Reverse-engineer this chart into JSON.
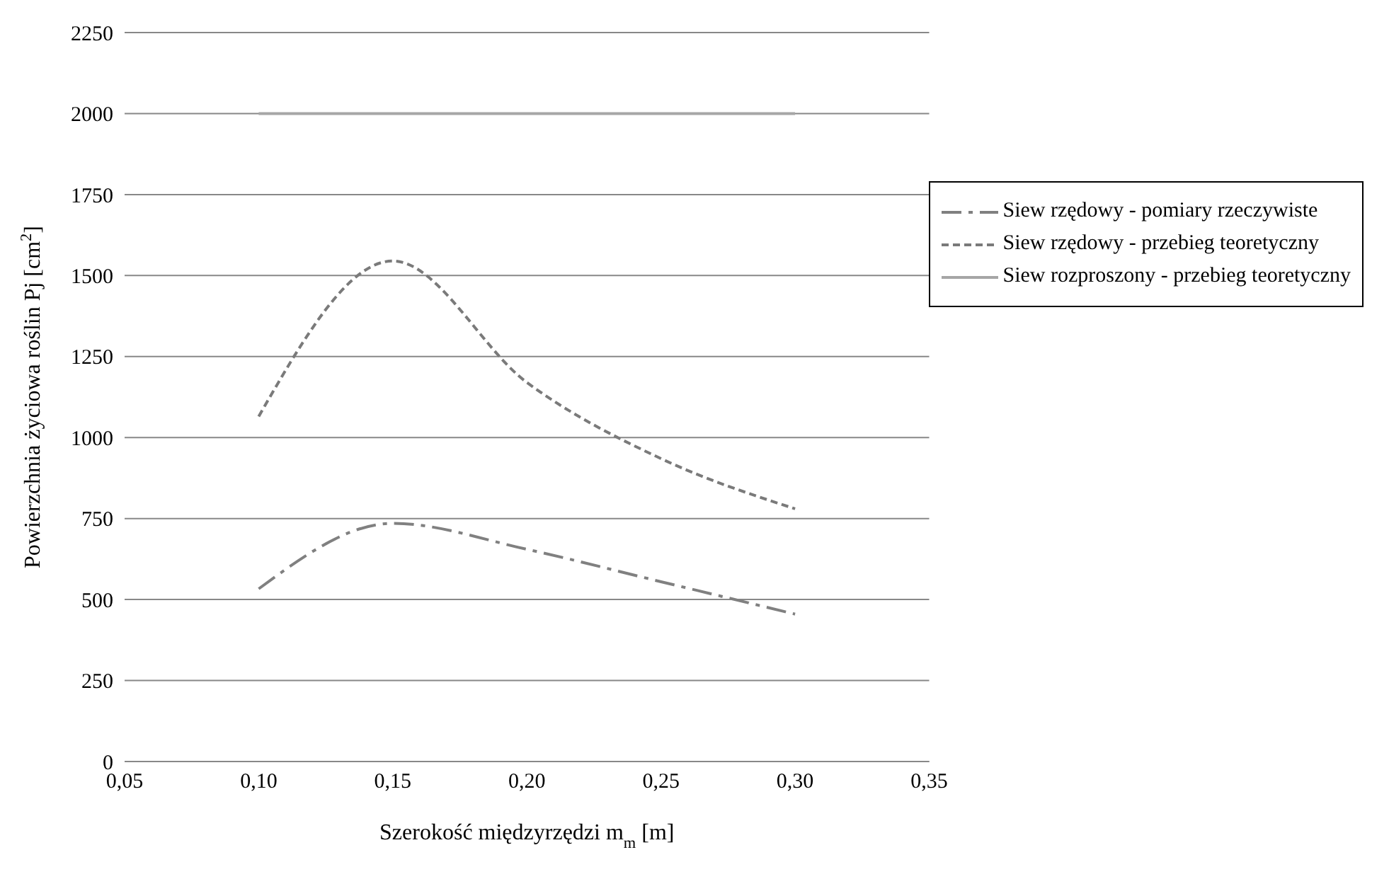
{
  "chart_data": {
    "type": "line",
    "xlabel": "Szerokość międzyrzędzi m$_{m}$ [m]",
    "ylabel": "Powierzchnia życiowa roślin Pj [cm$^{2}$]",
    "x": [
      0.1,
      0.15,
      0.2,
      0.25,
      0.3
    ],
    "series": [
      {
        "name": "Siew rzędowy - pomiary rzeczywiste",
        "color": "#808080",
        "line_style": "dashdot",
        "values": [
          533,
          735,
          655,
          555,
          455
        ]
      },
      {
        "name": "Siew rzędowy - przebieg teoretyczny",
        "color": "#7a7a7a",
        "line_style": "dashed",
        "values": [
          1065,
          1545,
          1170,
          935,
          780
        ]
      },
      {
        "name": "Siew rozproszony - przebieg teoretyczny",
        "color": "#a6a6a6",
        "line_style": "solid",
        "values": [
          2000,
          2000,
          2000,
          2000,
          2000
        ]
      }
    ],
    "xlim": [
      0.05,
      0.35
    ],
    "xticks": [
      {
        "value": 0.05,
        "label": "0,05"
      },
      {
        "value": 0.1,
        "label": "0,10"
      },
      {
        "value": 0.15,
        "label": "0,15"
      },
      {
        "value": 0.2,
        "label": "0,20"
      },
      {
        "value": 0.25,
        "label": "0,25"
      },
      {
        "value": 0.3,
        "label": "0,30"
      },
      {
        "value": 0.35,
        "label": "0,35"
      }
    ],
    "ylim": [
      0,
      2250
    ],
    "yticks": [
      0,
      250,
      500,
      750,
      1000,
      1250,
      1500,
      1750,
      2000,
      2250
    ],
    "grid": "y",
    "legend": "top right",
    "marker": "none"
  }
}
